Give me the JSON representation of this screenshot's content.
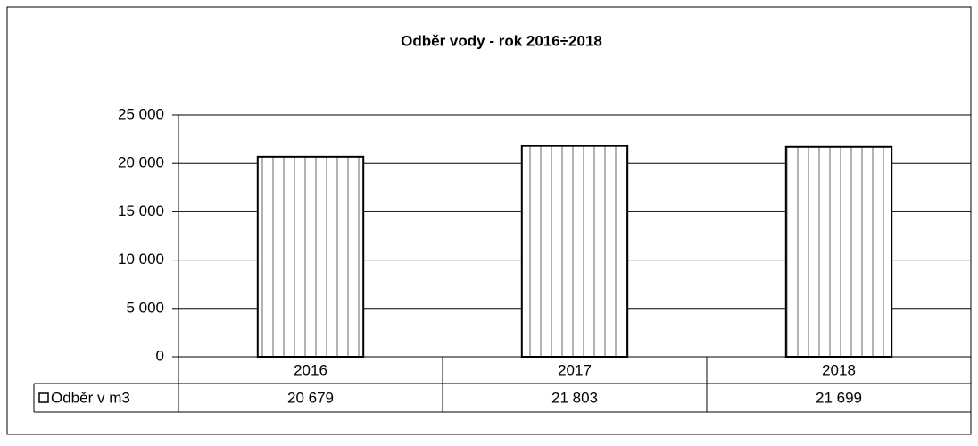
{
  "chart_data": {
    "type": "bar",
    "title": "Odběr vody - rok 2016÷2018",
    "categories": [
      "2016",
      "2017",
      "2018"
    ],
    "series": [
      {
        "name": "Odběr v m3",
        "color": "#ffffff",
        "values": [
          20679,
          21803,
          21699
        ],
        "value_labels": [
          "20 679",
          "21 803",
          "21 699"
        ]
      }
    ],
    "ylim": [
      0,
      25000
    ],
    "yticks": [
      0,
      {
        "value": 5000,
        "label": "5 000"
      },
      {
        "value": 10000,
        "label": "10 000"
      },
      {
        "value": 15000,
        "label": "15 000"
      },
      {
        "value": 20000,
        "label": "20 000"
      },
      {
        "value": 25000,
        "label": "25 000"
      }
    ],
    "grid": true
  }
}
